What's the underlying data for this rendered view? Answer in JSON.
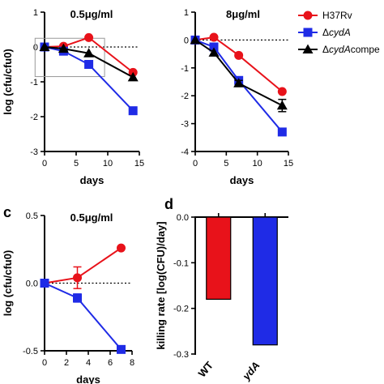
{
  "colors": {
    "h37rv": "#e8121a",
    "cydA": "#1f2be6",
    "cydAcomp": "#000000",
    "box": "#9a9a9a"
  },
  "legend": {
    "items": [
      {
        "key": "h37rv",
        "prefix": "",
        "italic": "",
        "text": "H37Rv",
        "marker": "circle"
      },
      {
        "key": "cydA",
        "prefix": "Δ",
        "italic": "cydA",
        "text": "",
        "marker": "square"
      },
      {
        "key": "cydAcomp",
        "prefix": "Δ",
        "italic": "cydA",
        "text": "compe",
        "marker": "triangle"
      }
    ]
  },
  "chart_data": [
    {
      "id": "a",
      "type": "line",
      "title": "0.5μg/ml",
      "xlabel": "days",
      "ylabel": "log (cfu/cfu0)",
      "xlim": [
        0,
        15
      ],
      "ylim": [
        -3,
        1
      ],
      "xticks": [
        "0",
        "5",
        "10",
        "15"
      ],
      "yticks": [
        "-3",
        "-2",
        "-1",
        "0",
        "1"
      ],
      "reference_line": 0,
      "zoom_box": {
        "x": [
          -1.5,
          9.5
        ],
        "y": [
          -0.85,
          0.25
        ]
      },
      "series": [
        {
          "key": "h37rv",
          "marker": "circle",
          "x": [
            0,
            3,
            7,
            14
          ],
          "y": [
            0,
            0.02,
            0.27,
            -0.73
          ],
          "err": [
            0,
            0,
            0,
            0
          ]
        },
        {
          "key": "cydA",
          "marker": "square",
          "x": [
            0,
            3,
            7,
            14
          ],
          "y": [
            0,
            -0.12,
            -0.5,
            -1.83
          ],
          "err": [
            0,
            0.1,
            0.05,
            0.05
          ]
        },
        {
          "key": "cydAcomp",
          "marker": "triangle",
          "x": [
            0,
            3,
            7,
            14
          ],
          "y": [
            0,
            -0.05,
            -0.18,
            -0.87
          ],
          "err": [
            0,
            0,
            0,
            0
          ]
        }
      ]
    },
    {
      "id": "b",
      "type": "line",
      "title": "8μg/ml",
      "xlabel": "days",
      "ylabel": "",
      "xlim": [
        0,
        15
      ],
      "ylim": [
        -4,
        1
      ],
      "xticks": [
        "0",
        "5",
        "10",
        "15"
      ],
      "yticks": [
        "-4",
        "-3",
        "-2",
        "-1",
        "0",
        "1"
      ],
      "reference_line": 0,
      "series": [
        {
          "key": "h37rv",
          "marker": "circle",
          "x": [
            0,
            3,
            7,
            14
          ],
          "y": [
            0,
            0.1,
            -0.55,
            -1.85
          ],
          "err": [
            0,
            0,
            0,
            0
          ]
        },
        {
          "key": "cydA",
          "marker": "square",
          "x": [
            0,
            3,
            7,
            14
          ],
          "y": [
            0,
            -0.25,
            -1.45,
            -3.3
          ],
          "err": [
            0,
            0,
            0.12,
            0.08
          ]
        },
        {
          "key": "cydAcomp",
          "marker": "triangle",
          "x": [
            0,
            3,
            7,
            14
          ],
          "y": [
            0,
            -0.45,
            -1.55,
            -2.35
          ],
          "err": [
            0,
            0,
            0.1,
            0.22
          ]
        }
      ]
    },
    {
      "id": "c",
      "panel_label": "c",
      "type": "line",
      "title": "0.5μg/ml",
      "xlabel": "days",
      "ylabel": "log (cfu/cfu0)",
      "xlim": [
        0,
        8
      ],
      "ylim": [
        -0.5,
        0.5
      ],
      "xticks": [
        "0",
        "2",
        "4",
        "6",
        "8"
      ],
      "yticks": [
        "-0.5",
        "0.0",
        "0.5"
      ],
      "reference_line": 0,
      "series": [
        {
          "key": "h37rv",
          "marker": "circle",
          "x": [
            0,
            3,
            7
          ],
          "y": [
            0,
            0.04,
            0.26
          ],
          "err": [
            0,
            0.08,
            0
          ]
        },
        {
          "key": "cydA",
          "marker": "square",
          "x": [
            0,
            3,
            7
          ],
          "y": [
            0,
            -0.11,
            -0.49
          ],
          "err": [
            0,
            0.03,
            0.02
          ]
        }
      ]
    },
    {
      "id": "d",
      "panel_label": "d",
      "type": "bar",
      "ylabel": "killing rate [log(CFU)/day]",
      "ylim": [
        -0.3,
        0
      ],
      "yticks": [
        "-0.3",
        "-0.2",
        "-0.1",
        "0.0"
      ],
      "categories": [
        "WT",
        "ΔcydA"
      ],
      "category_labels": [
        "WT",
        "ydA"
      ],
      "values": [
        -0.18,
        -0.28
      ],
      "bar_keys": [
        "h37rv",
        "cydA"
      ]
    }
  ]
}
